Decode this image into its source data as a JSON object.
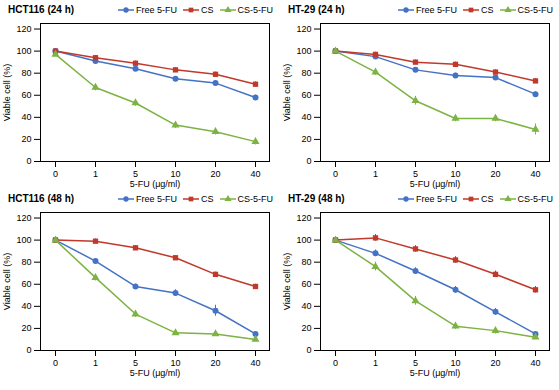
{
  "chart_data": [
    {
      "type": "line",
      "title": "HCT116 (24 h)",
      "categories": [
        "0",
        "1",
        "5",
        "10",
        "20",
        "40"
      ],
      "xlabel": "5-FU (μg/ml)",
      "ylabel": "Viable cell (%)",
      "ylim": [
        0,
        125
      ],
      "yticks": [
        0,
        20,
        40,
        60,
        80,
        100,
        120
      ],
      "legend": "upper right",
      "series": [
        {
          "name": "Free 5-FU",
          "color": "#4472C4",
          "marker": "circle",
          "values": [
            100,
            91,
            84,
            75,
            71,
            58
          ],
          "errors": [
            2,
            2,
            2,
            2,
            2,
            2
          ]
        },
        {
          "name": "CS",
          "color": "#C0392B",
          "marker": "square",
          "values": [
            100,
            94,
            89,
            83,
            79,
            70
          ],
          "errors": [
            2,
            2,
            2,
            2,
            2,
            2
          ]
        },
        {
          "name": "CS-5-FU",
          "color": "#7CB342",
          "marker": "triangle",
          "values": [
            97,
            67,
            53,
            33,
            27,
            18
          ],
          "errors": [
            2,
            3,
            3,
            3,
            3,
            3
          ]
        }
      ]
    },
    {
      "type": "line",
      "title": "HT-29 (24 h)",
      "categories": [
        "0",
        "1",
        "5",
        "10",
        "20",
        "40"
      ],
      "xlabel": "5-FU (μg/ml)",
      "ylabel": "Viable cell (%)",
      "ylim": [
        0,
        125
      ],
      "yticks": [
        0,
        20,
        40,
        60,
        80,
        100,
        120
      ],
      "legend": "upper right",
      "series": [
        {
          "name": "Free 5-FU",
          "color": "#4472C4",
          "marker": "circle",
          "values": [
            100,
            95,
            83,
            78,
            76,
            61
          ],
          "errors": [
            2,
            2,
            2,
            2,
            2,
            2
          ]
        },
        {
          "name": "CS",
          "color": "#C0392B",
          "marker": "square",
          "values": [
            100,
            97,
            90,
            88,
            81,
            73
          ],
          "errors": [
            2,
            2,
            2,
            2,
            2,
            2
          ]
        },
        {
          "name": "CS-5-FU",
          "color": "#7CB342",
          "marker": "triangle",
          "values": [
            100,
            81,
            55,
            39,
            39,
            29
          ],
          "errors": [
            2,
            3,
            4,
            3,
            3,
            5
          ]
        }
      ]
    },
    {
      "type": "line",
      "title": "HCT116 (48 h)",
      "categories": [
        "0",
        "1",
        "5",
        "10",
        "20",
        "40"
      ],
      "xlabel": "5-FU (μg/ml)",
      "ylabel": "Viable cell (%)",
      "ylim": [
        0,
        125
      ],
      "yticks": [
        0,
        20,
        40,
        60,
        80,
        100,
        120
      ],
      "legend": "upper right",
      "series": [
        {
          "name": "Free 5-FU",
          "color": "#4472C4",
          "marker": "circle",
          "values": [
            100,
            81,
            58,
            52,
            36,
            15
          ],
          "errors": [
            2,
            2,
            2,
            3,
            5,
            2
          ]
        },
        {
          "name": "CS",
          "color": "#C0392B",
          "marker": "square",
          "values": [
            100,
            99,
            93,
            84,
            69,
            58
          ],
          "errors": [
            2,
            2,
            2,
            2,
            2,
            2
          ]
        },
        {
          "name": "CS-5-FU",
          "color": "#7CB342",
          "marker": "triangle",
          "values": [
            100,
            66,
            33,
            16,
            15,
            10
          ],
          "errors": [
            2,
            3,
            3,
            2,
            2,
            2
          ]
        }
      ]
    },
    {
      "type": "line",
      "title": "HT-29 (48 h)",
      "categories": [
        "0",
        "1",
        "5",
        "10",
        "20",
        "40"
      ],
      "xlabel": "5-FU (μg/ml)",
      "ylabel": "Viable cell (%)",
      "ylim": [
        0,
        125
      ],
      "yticks": [
        0,
        20,
        40,
        60,
        80,
        100,
        120
      ],
      "legend": "upper right",
      "series": [
        {
          "name": "Free 5-FU",
          "color": "#4472C4",
          "marker": "circle",
          "values": [
            100,
            88,
            72,
            55,
            35,
            15
          ],
          "errors": [
            2,
            3,
            3,
            3,
            3,
            2
          ]
        },
        {
          "name": "CS",
          "color": "#C0392B",
          "marker": "square",
          "values": [
            100,
            102,
            92,
            82,
            69,
            55
          ],
          "errors": [
            2,
            3,
            3,
            3,
            3,
            3
          ]
        },
        {
          "name": "CS-5-FU",
          "color": "#7CB342",
          "marker": "triangle",
          "values": [
            100,
            76,
            45,
            22,
            18,
            12
          ],
          "errors": [
            2,
            4,
            4,
            3,
            3,
            2
          ]
        }
      ]
    }
  ]
}
